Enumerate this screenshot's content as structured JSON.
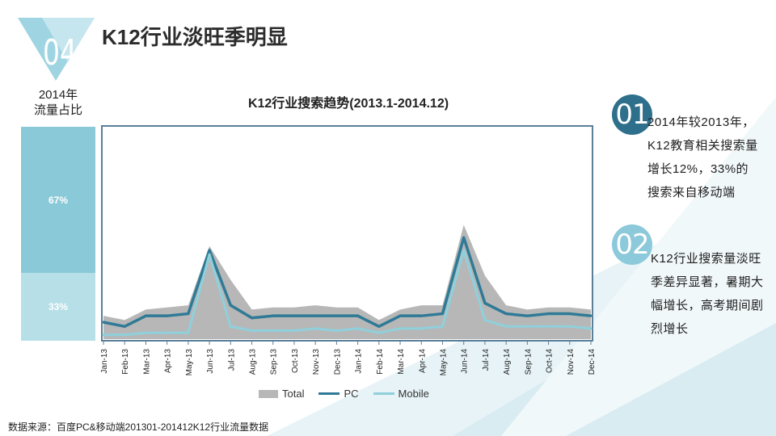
{
  "slide": {
    "section_number": "04",
    "title": "K12行业淡旺季明显",
    "footer": "数据来源：百度PC&移动端201301-201412K12行业流量数据"
  },
  "share": {
    "title_line1": "2014年",
    "title_line2": "流量占比",
    "segments": [
      {
        "label": "67%",
        "value": 67,
        "color": "#8ac9d8"
      },
      {
        "label": "33%",
        "value": 33,
        "color": "#b6dfe8"
      }
    ]
  },
  "points": [
    {
      "number": "01",
      "text": "2014年较2013年，K12教育相关搜索量增长12%，33%的搜索来自移动端"
    },
    {
      "number": "02",
      "text": "K12行业搜索量淡旺季差异显著，暑期大幅增长，高考期间剧烈增长"
    }
  ],
  "colors": {
    "total": "#b7b7b7",
    "pc": "#2f7a96",
    "mobile": "#8fd0dc",
    "frame": "#5a7f99",
    "accent_dark": "#2e6f8c",
    "accent_light": "#8cc9da"
  },
  "chart_data": {
    "type": "area",
    "title": "K12行业搜索趋势(2013.1-2014.12)",
    "categories": [
      "Jan-13",
      "Feb-13",
      "Mar-13",
      "Apr-13",
      "May-13",
      "Jun-13",
      "Jul-13",
      "Aug-13",
      "Sep-13",
      "Oct-13",
      "Nov-13",
      "Dec-13",
      "Jan-14",
      "Feb-14",
      "Mar-14",
      "Apr-14",
      "May-14",
      "Jun-14",
      "Jul-14",
      "Aug-14",
      "Sep-14",
      "Oct-14",
      "Nov-14",
      "Dec-14"
    ],
    "ylim": [
      0,
      100
    ],
    "grid": false,
    "legend_position": "bottom",
    "series": [
      {
        "name": "Total",
        "values": [
          11,
          9,
          14,
          15,
          16,
          44,
          28,
          14,
          15,
          15,
          16,
          15,
          15,
          9,
          14,
          16,
          16,
          54,
          30,
          16,
          14,
          15,
          15,
          14
        ]
      },
      {
        "name": "PC",
        "values": [
          8,
          6,
          11,
          11,
          12,
          42,
          16,
          10,
          11,
          11,
          11,
          11,
          11,
          6,
          11,
          11,
          12,
          48,
          17,
          12,
          11,
          12,
          12,
          11
        ]
      },
      {
        "name": "Mobile",
        "values": [
          2,
          2,
          3,
          3,
          3,
          40,
          6,
          4,
          4,
          4,
          5,
          4,
          5,
          3,
          5,
          5,
          6,
          42,
          9,
          6,
          6,
          6,
          6,
          5
        ]
      }
    ]
  }
}
